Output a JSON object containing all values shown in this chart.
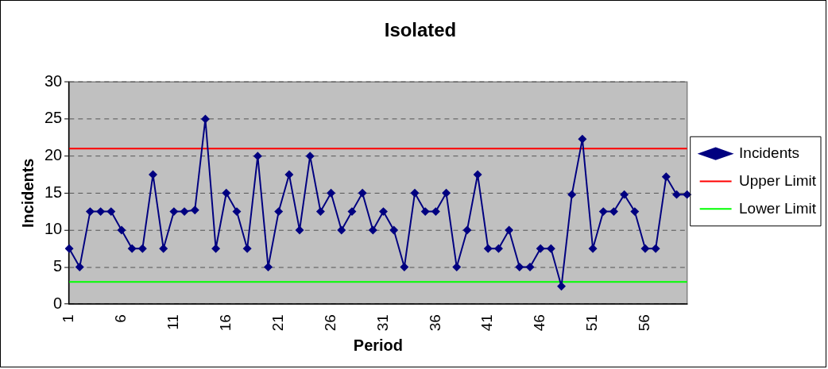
{
  "chart_data": {
    "type": "line",
    "title": "Isolated",
    "xlabel": "Period",
    "ylabel": "Incidents",
    "categories": [
      "1",
      null,
      null,
      null,
      null,
      "6",
      null,
      null,
      null,
      null,
      "11",
      null,
      null,
      null,
      null,
      "16",
      null,
      null,
      null,
      null,
      "21",
      null,
      null,
      null,
      null,
      "26",
      null,
      null,
      null,
      null,
      "31",
      null,
      null,
      null,
      null,
      "36",
      null,
      null,
      null,
      null,
      "41",
      null,
      null,
      null,
      null,
      "46",
      null,
      null,
      null,
      null,
      "51",
      null,
      null,
      null,
      null,
      "56",
      null,
      null,
      null,
      null
    ],
    "series": [
      {
        "name": "Incidents",
        "color": "#000080",
        "values": [
          7.5,
          5,
          12.5,
          12.5,
          12.5,
          10,
          7.5,
          7.5,
          17.5,
          7.5,
          12.5,
          12.5,
          12.7,
          25,
          7.5,
          15,
          12.5,
          7.5,
          20,
          5,
          12.5,
          17.5,
          10,
          20,
          12.5,
          15,
          10,
          12.5,
          15,
          10,
          12.5,
          10,
          5,
          15,
          12.5,
          12.5,
          15,
          5,
          10,
          17.5,
          7.5,
          7.5,
          10,
          5,
          5,
          7.5,
          7.5,
          2.4,
          14.8,
          22.3,
          7.5,
          12.5,
          12.5,
          14.8,
          12.5,
          7.5,
          7.5,
          17.2,
          14.8,
          14.8
        ]
      }
    ],
    "ref_lines": [
      {
        "axis": "y",
        "value": 21,
        "label": "Upper Limit",
        "color": "#ff0000"
      },
      {
        "axis": "y",
        "value": 3,
        "label": "Lower Limit",
        "color": "#00ff00"
      }
    ],
    "ylim": [
      0,
      30
    ],
    "yticks": [
      0,
      5,
      10,
      15,
      20,
      25,
      30
    ],
    "grid": "y",
    "legend": "right",
    "marker": "diamond",
    "line_style": "solid"
  }
}
